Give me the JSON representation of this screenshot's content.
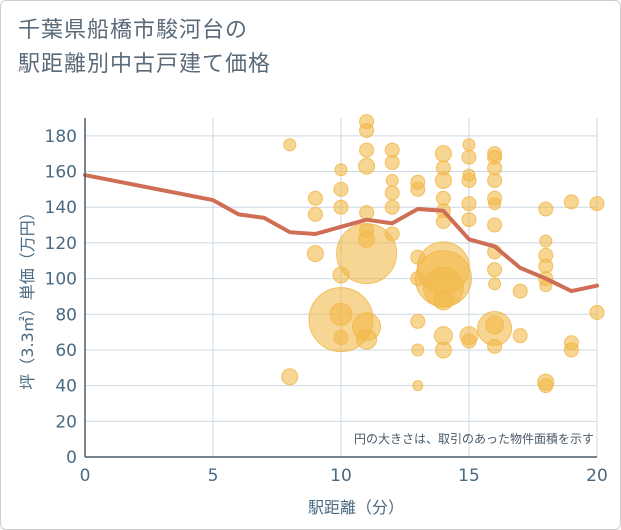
{
  "title_lines": [
    "千葉県船橋市駿河台の",
    "駅距離別中古戸建て価格"
  ],
  "colors": {
    "bubble": "#f1b94a",
    "line": "#cf6d55",
    "grid": "#cdd8e2",
    "text": "#4a6a82"
  },
  "chart_data": {
    "type": "scatter",
    "xlabel": "駅距離（分）",
    "ylabel": "坪（3.3㎡）単価（万円）",
    "xlim": [
      0,
      20
    ],
    "ylim": [
      0,
      190
    ],
    "xticks": [
      0,
      5,
      10,
      15,
      20
    ],
    "yticks": [
      0,
      20,
      40,
      60,
      80,
      100,
      120,
      140,
      160,
      180
    ],
    "grid": true,
    "annotation": "円の大きさは、取引のあった物件面積を示す",
    "bubbles": [
      {
        "x": 8,
        "y": 175,
        "r": 6
      },
      {
        "x": 8,
        "y": 45,
        "r": 8
      },
      {
        "x": 9,
        "y": 145,
        "r": 7
      },
      {
        "x": 9,
        "y": 136,
        "r": 7
      },
      {
        "x": 9,
        "y": 114,
        "r": 8
      },
      {
        "x": 10,
        "y": 161,
        "r": 6
      },
      {
        "x": 10,
        "y": 150,
        "r": 7
      },
      {
        "x": 10,
        "y": 140,
        "r": 7
      },
      {
        "x": 10,
        "y": 102,
        "r": 8
      },
      {
        "x": 10,
        "y": 77,
        "r": 32
      },
      {
        "x": 10,
        "y": 80,
        "r": 11
      },
      {
        "x": 10,
        "y": 67,
        "r": 7
      },
      {
        "x": 11,
        "y": 188,
        "r": 7
      },
      {
        "x": 11,
        "y": 183,
        "r": 7
      },
      {
        "x": 11,
        "y": 172,
        "r": 7
      },
      {
        "x": 11,
        "y": 163,
        "r": 8
      },
      {
        "x": 11,
        "y": 137,
        "r": 7
      },
      {
        "x": 11,
        "y": 127,
        "r": 7
      },
      {
        "x": 11,
        "y": 122,
        "r": 8
      },
      {
        "x": 11,
        "y": 114,
        "r": 30
      },
      {
        "x": 11,
        "y": 73,
        "r": 14
      },
      {
        "x": 11,
        "y": 66,
        "r": 10
      },
      {
        "x": 12,
        "y": 172,
        "r": 7
      },
      {
        "x": 12,
        "y": 165,
        "r": 7
      },
      {
        "x": 12,
        "y": 155,
        "r": 6
      },
      {
        "x": 12,
        "y": 148,
        "r": 7
      },
      {
        "x": 12,
        "y": 140,
        "r": 7
      },
      {
        "x": 12,
        "y": 125,
        "r": 7
      },
      {
        "x": 13,
        "y": 154,
        "r": 7
      },
      {
        "x": 13,
        "y": 150,
        "r": 7
      },
      {
        "x": 13,
        "y": 112,
        "r": 7
      },
      {
        "x": 13,
        "y": 100,
        "r": 7
      },
      {
        "x": 13,
        "y": 76,
        "r": 7
      },
      {
        "x": 13,
        "y": 60,
        "r": 6
      },
      {
        "x": 13,
        "y": 40,
        "r": 5
      },
      {
        "x": 14,
        "y": 170,
        "r": 8
      },
      {
        "x": 14,
        "y": 162,
        "r": 7
      },
      {
        "x": 14,
        "y": 155,
        "r": 8
      },
      {
        "x": 14,
        "y": 145,
        "r": 7
      },
      {
        "x": 14,
        "y": 138,
        "r": 7
      },
      {
        "x": 14,
        "y": 132,
        "r": 7
      },
      {
        "x": 14,
        "y": 106,
        "r": 26
      },
      {
        "x": 14,
        "y": 100,
        "r": 28
      },
      {
        "x": 14,
        "y": 95,
        "r": 20
      },
      {
        "x": 14,
        "y": 88,
        "r": 10
      },
      {
        "x": 14,
        "y": 68,
        "r": 9
      },
      {
        "x": 14,
        "y": 60,
        "r": 8
      },
      {
        "x": 15,
        "y": 175,
        "r": 6
      },
      {
        "x": 15,
        "y": 168,
        "r": 7
      },
      {
        "x": 15,
        "y": 158,
        "r": 6
      },
      {
        "x": 15,
        "y": 155,
        "r": 7
      },
      {
        "x": 15,
        "y": 142,
        "r": 7
      },
      {
        "x": 15,
        "y": 133,
        "r": 7
      },
      {
        "x": 15,
        "y": 68,
        "r": 9
      },
      {
        "x": 15,
        "y": 65,
        "r": 7
      },
      {
        "x": 16,
        "y": 170,
        "r": 7
      },
      {
        "x": 16,
        "y": 168,
        "r": 7
      },
      {
        "x": 16,
        "y": 162,
        "r": 7
      },
      {
        "x": 16,
        "y": 155,
        "r": 7
      },
      {
        "x": 16,
        "y": 145,
        "r": 7
      },
      {
        "x": 16,
        "y": 142,
        "r": 6
      },
      {
        "x": 16,
        "y": 130,
        "r": 7
      },
      {
        "x": 16,
        "y": 115,
        "r": 7
      },
      {
        "x": 16,
        "y": 105,
        "r": 7
      },
      {
        "x": 16,
        "y": 97,
        "r": 6
      },
      {
        "x": 16,
        "y": 72,
        "r": 17
      },
      {
        "x": 16,
        "y": 74,
        "r": 9
      },
      {
        "x": 16,
        "y": 62,
        "r": 7
      },
      {
        "x": 17,
        "y": 93,
        "r": 7
      },
      {
        "x": 17,
        "y": 68,
        "r": 7
      },
      {
        "x": 18,
        "y": 139,
        "r": 7
      },
      {
        "x": 18,
        "y": 121,
        "r": 6
      },
      {
        "x": 18,
        "y": 113,
        "r": 7
      },
      {
        "x": 18,
        "y": 107,
        "r": 7
      },
      {
        "x": 18,
        "y": 100,
        "r": 7
      },
      {
        "x": 18,
        "y": 96,
        "r": 6
      },
      {
        "x": 18,
        "y": 42,
        "r": 8
      },
      {
        "x": 18,
        "y": 40,
        "r": 7
      },
      {
        "x": 19,
        "y": 143,
        "r": 7
      },
      {
        "x": 19,
        "y": 64,
        "r": 7
      },
      {
        "x": 19,
        "y": 60,
        "r": 7
      },
      {
        "x": 20,
        "y": 142,
        "r": 7
      },
      {
        "x": 20,
        "y": 81,
        "r": 7
      }
    ],
    "series": [
      {
        "type": "line",
        "x": [
          0,
          5,
          6,
          7,
          8,
          9,
          10,
          11,
          12,
          13,
          14,
          15,
          16,
          17,
          18,
          19,
          20
        ],
        "y": [
          158,
          144,
          136,
          134,
          126,
          125,
          129,
          133,
          131,
          139,
          138,
          122,
          118,
          106,
          100,
          93,
          96
        ]
      }
    ]
  }
}
